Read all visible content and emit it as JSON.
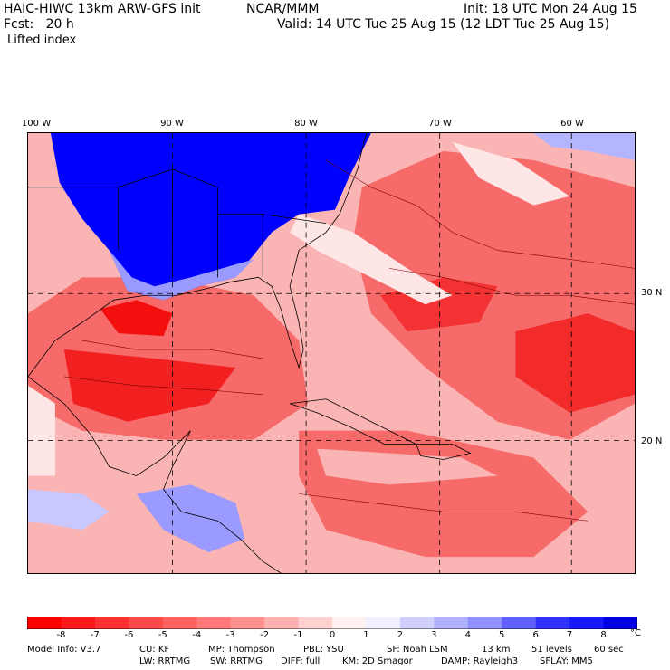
{
  "header": {
    "model_title": "HAIC-HIWC 13km ARW-GFS init",
    "org": "NCAR/MMM",
    "init": "Init: 18 UTC Mon 24 Aug 15",
    "fcst": "Fcst:   20 h",
    "valid": "Valid: 14 UTC Tue 25 Aug 15 (12 LDT Tue 25 Aug 15)",
    "field": "Lifted index"
  },
  "map": {
    "lon_labels": [
      "100 W",
      "90 W",
      "80 W",
      "70 W",
      "60 W"
    ],
    "lat_labels": [
      "30 N",
      "20 N"
    ],
    "colors": {
      "land_stable": "#0000ff",
      "strong_unstable": "#f40f0f",
      "moderate": "#f66a6a",
      "weak": "#fab4b4",
      "near_zero": "#ffe6e6"
    }
  },
  "colorbar": {
    "ticks": [
      "-8",
      "-7",
      "-6",
      "-5",
      "-4",
      "-3",
      "-2",
      "-1",
      "0",
      "1",
      "2",
      "3",
      "4",
      "5",
      "6",
      "7",
      "8"
    ],
    "unit": "°C",
    "colors": [
      "#ff0000",
      "#ff1818",
      "#ff3030",
      "#ff4848",
      "#ff6060",
      "#ff7878",
      "#ff9090",
      "#ffb0b0",
      "#ffd0d0",
      "#fff0f0",
      "#f0f0ff",
      "#d0d0ff",
      "#b0b0ff",
      "#9090ff",
      "#6060ff",
      "#3030ff",
      "#1818ff",
      "#0000e0"
    ]
  },
  "model_info": {
    "line1": [
      "Model Info: V3.7",
      "CU: KF",
      "MP: Thompson",
      "PBL: YSU",
      "SF: Noah LSM",
      "13 km",
      "51 levels",
      "60 sec"
    ],
    "line2": [
      "LW: RRTMG",
      "SW: RRTMG",
      "DIFF: full",
      "KM: 2D Smagor",
      "DAMP: Rayleigh3",
      "SFLAY: MM5"
    ]
  }
}
